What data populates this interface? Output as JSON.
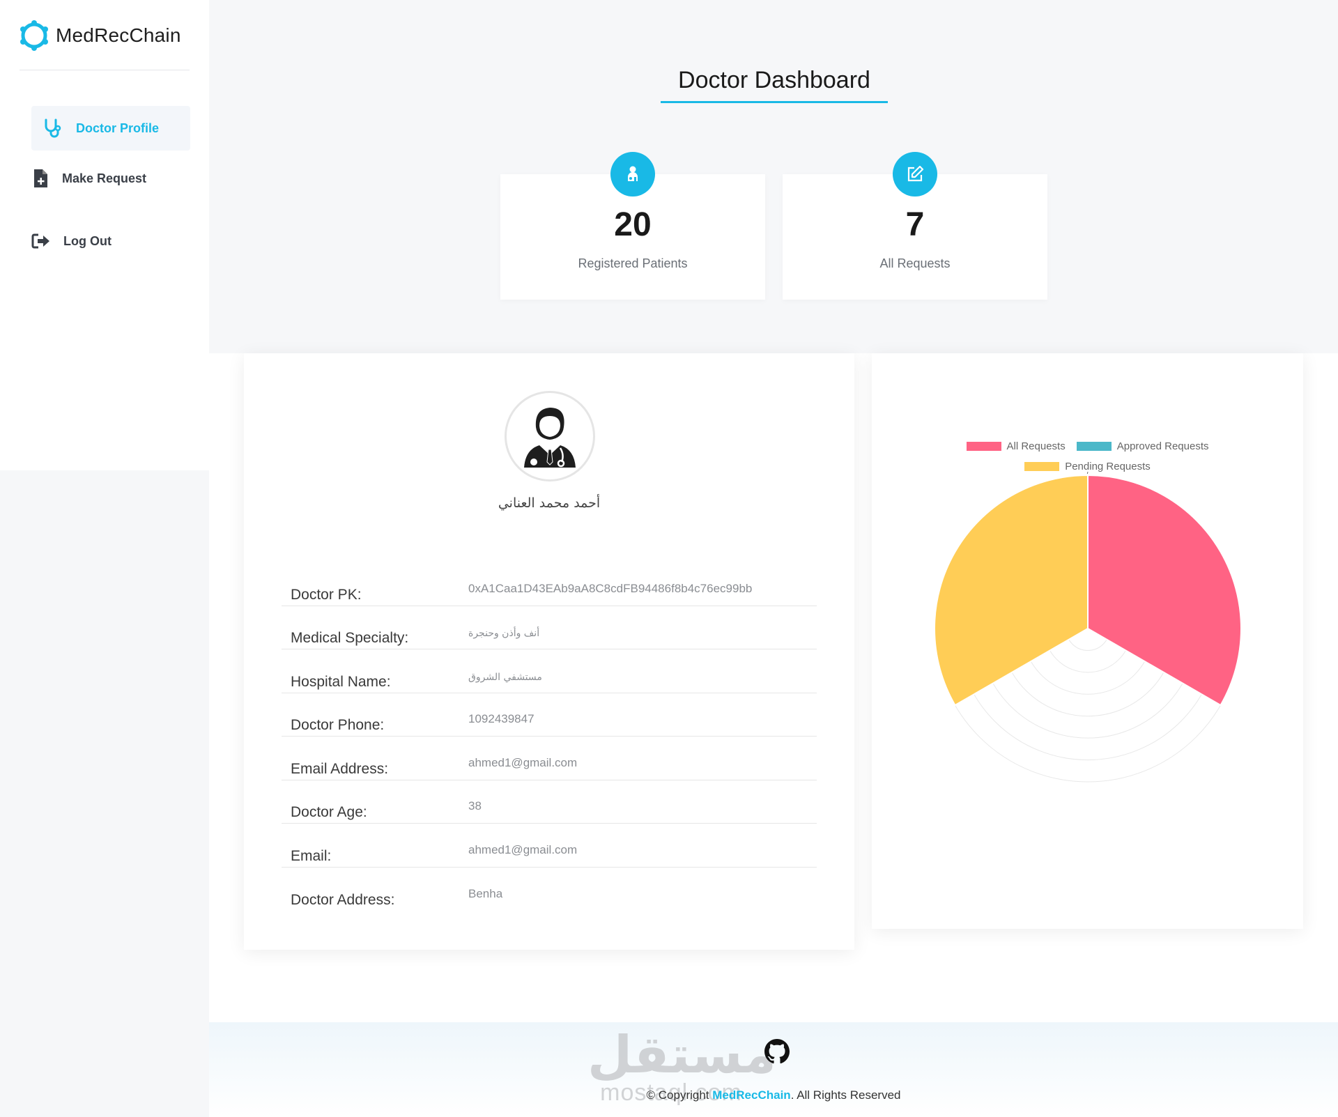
{
  "sidebar": {
    "brand": "MedRecChain",
    "items": [
      {
        "label": "Doctor Profile",
        "icon": "stethoscope-icon",
        "active": true
      },
      {
        "label": "Make Request",
        "icon": "file-plus-icon",
        "active": false
      },
      {
        "label": "Log Out",
        "icon": "logout-icon",
        "active": false
      }
    ]
  },
  "header": {
    "title": "Doctor Dashboard"
  },
  "stats": [
    {
      "value": "20",
      "label": "Registered Patients",
      "icon": "patient-icon"
    },
    {
      "value": "7",
      "label": "All Requests",
      "icon": "edit-icon"
    }
  ],
  "profile": {
    "name": "أحمد محمد العناني",
    "avatar_icon": "doctor-avatar-icon",
    "fields": [
      {
        "label": "Doctor PK:",
        "value": "0xA1Caa1D43EAb9aA8C8cdFB94486f8b4c76ec99bb"
      },
      {
        "label": "Medical Specialty:",
        "value": "أنف وأذن وحنجرة"
      },
      {
        "label": "Hospital Name:",
        "value": "مستشفي الشروق"
      },
      {
        "label": "Doctor Phone:",
        "value": "1092439847"
      },
      {
        "label": "Email Address:",
        "value": "ahmed1@gmail.com"
      },
      {
        "label": "Doctor Age:",
        "value": "38"
      },
      {
        "label": "Email:",
        "value": "ahmed1@gmail.com"
      },
      {
        "label": "Doctor Address:",
        "value": "Benha"
      }
    ]
  },
  "chart_data": {
    "type": "polarArea",
    "categories": [
      "All Requests",
      "Approved Requests",
      "Pending Requests"
    ],
    "values": [
      7,
      0,
      7
    ],
    "colors": [
      "#ff6384",
      "#4bb8c9",
      "#ffcd56"
    ],
    "scale_max": 7,
    "scale_max_label": "7",
    "legend_position": "top"
  },
  "footer": {
    "watermark_ar": "مستقل",
    "watermark_en": "mostaql.com",
    "copyright_prefix": "© Copyright",
    "copyright_brand": "MedRecChain",
    "copyright_suffix": ". All Rights Reserved",
    "icon": "github-icon"
  }
}
